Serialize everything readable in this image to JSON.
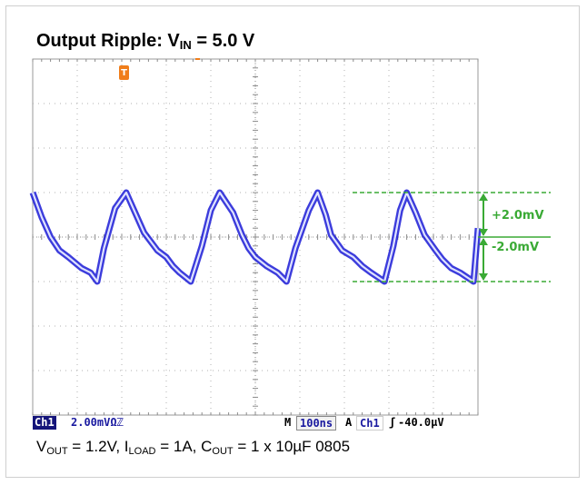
{
  "title": {
    "prefix": "Output Ripple: V",
    "sub": "IN",
    "suffix": " = 5.0 V"
  },
  "caption": {
    "v_out_label": "V",
    "v_out_sub": "OUT",
    "v_out_value": " = 1.2V, I",
    "i_load_sub": "LOAD",
    "i_load_value": " = 1A, C",
    "c_out_sub": "OUT",
    "c_out_value": " = 1 x 10µF 0805"
  },
  "status_bar": {
    "channel": "Ch1",
    "scale": "2.00mVΩℤ",
    "mode": "M",
    "timebase": "100ns",
    "trigger_mode": "A",
    "trigger_channel": "Ch1",
    "trigger_slope": "ʃ",
    "trigger_level": "-40.0µV"
  },
  "trigger_marker": {
    "label": "T",
    "color": "#f07d1a"
  },
  "annotations": {
    "upper": "+2.0mV",
    "lower": "-2.0mV",
    "color": "#3aaa35"
  },
  "chart_data": {
    "type": "line",
    "title": "Output Ripple: VIN = 5.0 V",
    "xlabel": "",
    "ylabel": "",
    "x_unit": "ns",
    "y_unit": "mV",
    "xlim": [
      0,
      1000
    ],
    "ylim": [
      -8,
      8
    ],
    "x_per_div": 100,
    "y_per_div": 2,
    "grid": true,
    "trace_color": "#1a1ad6",
    "series": [
      {
        "x": [
          0,
          20,
          40,
          60,
          80,
          110,
          130,
          145,
          160,
          185,
          210,
          230,
          250,
          280,
          300,
          315,
          330,
          355,
          380,
          400,
          420,
          450,
          470,
          485,
          500,
          525,
          550,
          570,
          590,
          620,
          640,
          658,
          670,
          695,
          720,
          740,
          760,
          790,
          810,
          825,
          840,
          860,
          880,
          905,
          920,
          940,
          960,
          990,
          1000
        ],
        "y": [
          2.0,
          0.9,
          0.0,
          -0.6,
          -0.9,
          -1.4,
          -1.6,
          -2.0,
          -0.5,
          1.3,
          2.0,
          1.1,
          0.2,
          -0.6,
          -0.9,
          -1.3,
          -1.6,
          -2.0,
          -0.4,
          1.2,
          2.0,
          1.1,
          0.1,
          -0.5,
          -0.9,
          -1.3,
          -1.6,
          -2.0,
          -0.5,
          1.2,
          2.0,
          1.0,
          0.1,
          -0.6,
          -0.9,
          -1.3,
          -1.6,
          -2.0,
          -0.4,
          1.2,
          2.0,
          1.1,
          0.1,
          -0.6,
          -1.0,
          -1.4,
          -1.6,
          -2.0,
          0.4
        ]
      }
    ],
    "reference_levels": [
      2.0,
      -2.0
    ]
  }
}
